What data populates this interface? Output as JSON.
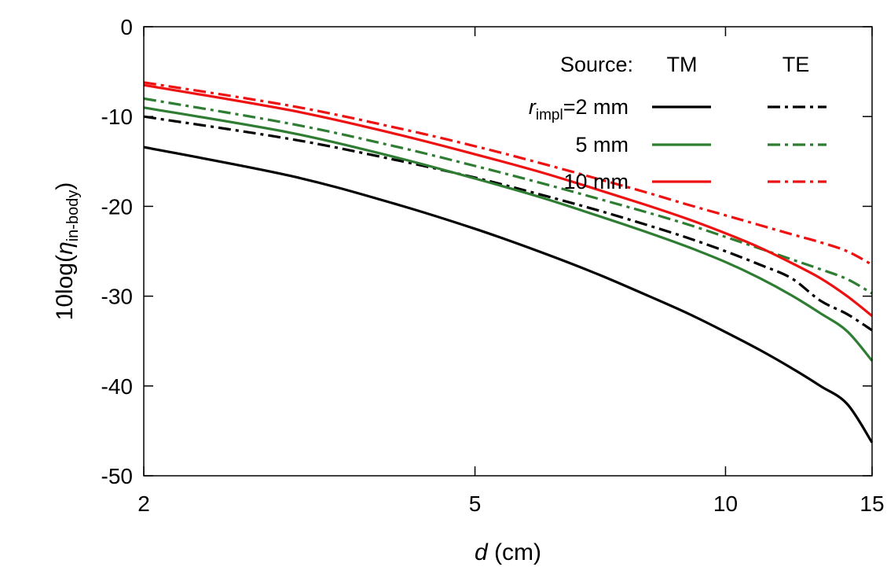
{
  "chart_data": {
    "type": "line",
    "xlabel": {
      "var": "d",
      "unit": " (cm)"
    },
    "ylabel": {
      "prefix": "10log(",
      "var": "η",
      "sub": "in-body",
      "suffix": ")"
    },
    "xlim": [
      2,
      15
    ],
    "ylim": [
      -50,
      0
    ],
    "xticks": [
      2,
      5,
      10,
      15
    ],
    "yticks": [
      0,
      -10,
      -20,
      -30,
      -40,
      -50
    ],
    "grid": false,
    "legend": {
      "placement": "top-right",
      "header_source": "Source:",
      "header_tm": "TM",
      "header_te": "TE",
      "rows": [
        {
          "label_var": "r",
          "label_sub": "impl",
          "label_rest": "=2 mm",
          "color": "#000000"
        },
        {
          "label_var": "",
          "label_sub": "",
          "label_rest": "5 mm",
          "color": "#2e7d32"
        },
        {
          "label_var": "",
          "label_sub": "",
          "label_rest": "10 mm",
          "color": "#ee1111"
        }
      ]
    },
    "series": [
      {
        "source": "TM",
        "radius_mm": 2,
        "color": "#000000",
        "dash": "solid",
        "x": [
          2,
          3,
          4,
          5,
          6,
          7,
          8,
          9,
          10,
          11,
          12,
          13,
          14,
          15
        ],
        "y": [
          -13.4,
          -16.6,
          -19.7,
          -22.5,
          -25.1,
          -27.5,
          -29.8,
          -31.9,
          -34.0,
          -36.0,
          -38.0,
          -40.0,
          -42.0,
          -46.3
        ]
      },
      {
        "source": "TE",
        "radius_mm": 2,
        "color": "#000000",
        "dash": "dashdot",
        "x": [
          2,
          3,
          4,
          5,
          6,
          7,
          8,
          9,
          10,
          11,
          12,
          13,
          14,
          15
        ],
        "y": [
          -10.0,
          -12.5,
          -14.8,
          -16.8,
          -18.7,
          -20.4,
          -22.0,
          -23.5,
          -25.0,
          -26.5,
          -28.0,
          -30.5,
          -32.0,
          -33.8
        ]
      },
      {
        "source": "TM",
        "radius_mm": 5,
        "color": "#2e7d32",
        "dash": "solid",
        "x": [
          2,
          3,
          4,
          5,
          6,
          7,
          8,
          9,
          10,
          11,
          12,
          13,
          14,
          15
        ],
        "y": [
          -9.0,
          -11.8,
          -14.5,
          -16.9,
          -19.0,
          -21.0,
          -22.8,
          -24.5,
          -26.2,
          -28.0,
          -29.9,
          -31.9,
          -33.9,
          -37.2
        ]
      },
      {
        "source": "TE",
        "radius_mm": 5,
        "color": "#2e7d32",
        "dash": "dashdot",
        "x": [
          2,
          3,
          4,
          5,
          6,
          7,
          8,
          9,
          10,
          11,
          12,
          13,
          14,
          15
        ],
        "y": [
          -8.0,
          -10.8,
          -13.3,
          -15.5,
          -17.4,
          -19.1,
          -20.6,
          -22.0,
          -23.4,
          -24.7,
          -25.9,
          -27.0,
          -28.1,
          -29.7
        ]
      },
      {
        "source": "TM",
        "radius_mm": 10,
        "color": "#ee1111",
        "dash": "solid",
        "x": [
          2,
          3,
          4,
          5,
          6,
          7,
          8,
          9,
          10,
          11,
          12,
          13,
          14,
          15
        ],
        "y": [
          -6.5,
          -9.3,
          -11.9,
          -14.2,
          -16.2,
          -18.1,
          -19.8,
          -21.4,
          -23.0,
          -24.6,
          -26.3,
          -28.0,
          -30.0,
          -32.2
        ]
      },
      {
        "source": "TE",
        "radius_mm": 10,
        "color": "#ee1111",
        "dash": "dashdot",
        "x": [
          2,
          3,
          4,
          5,
          6,
          7,
          8,
          9,
          10,
          11,
          12,
          13,
          14,
          15
        ],
        "y": [
          -6.2,
          -8.8,
          -11.2,
          -13.3,
          -15.2,
          -16.9,
          -18.4,
          -19.8,
          -21.0,
          -22.1,
          -23.1,
          -24.0,
          -25.0,
          -26.5
        ]
      }
    ]
  }
}
